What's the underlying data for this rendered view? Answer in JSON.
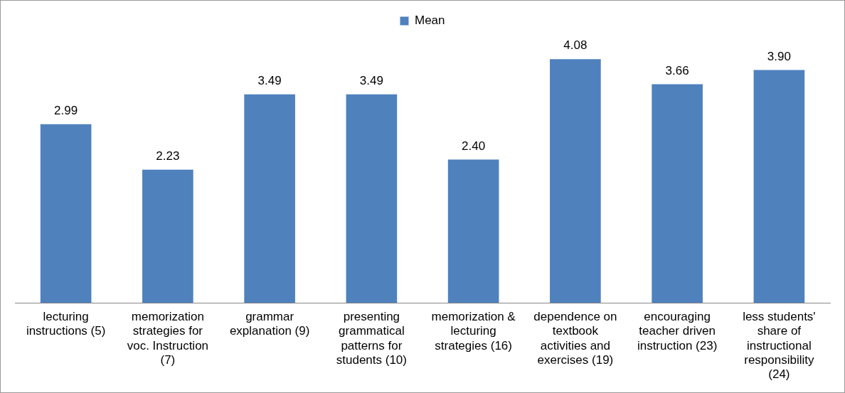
{
  "chart_data": {
    "type": "bar",
    "categories": [
      "lecturing instructions (5)",
      "memorization strategies for voc. Instruction (7)",
      "grammar explanation (9)",
      "presenting grammatical patterns for students (10)",
      "memorization & lecturing strategies (16)",
      "dependence on textbook activities and exercises (19)",
      "encouraging teacher driven instruction (23)",
      "less students' share of instructional responsibility (24)"
    ],
    "series": [
      {
        "name": "Mean",
        "color": "#4f81bd",
        "values": [
          2.99,
          2.23,
          3.49,
          3.49,
          2.4,
          4.08,
          3.66,
          3.9
        ],
        "value_labels": [
          "2.99",
          "2.23",
          "3.49",
          "3.49",
          "2.40",
          "4.08",
          "3.66",
          "3.90"
        ]
      }
    ],
    "legend": "top",
    "grid": false
  }
}
